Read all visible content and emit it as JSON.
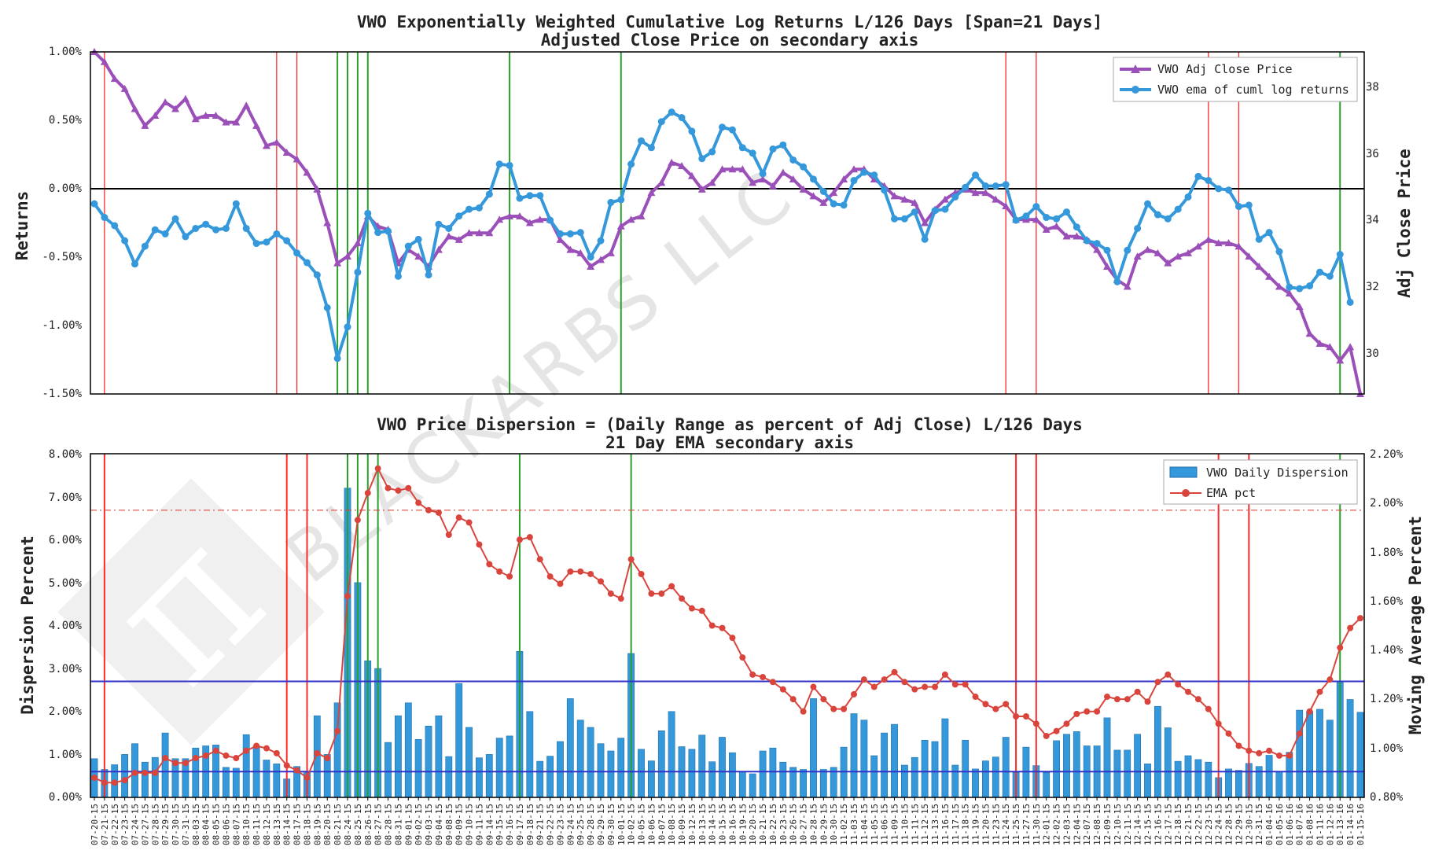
{
  "dates": [
    "07-20-15",
    "07-21-15",
    "07-22-15",
    "07-23-15",
    "07-24-15",
    "07-27-15",
    "07-28-15",
    "07-29-15",
    "07-30-15",
    "07-31-15",
    "08-03-15",
    "08-04-15",
    "08-05-15",
    "08-06-15",
    "08-07-15",
    "08-10-15",
    "08-11-15",
    "08-12-15",
    "08-13-15",
    "08-14-15",
    "08-17-15",
    "08-18-15",
    "08-19-15",
    "08-20-15",
    "08-21-15",
    "08-24-15",
    "08-25-15",
    "08-26-15",
    "08-27-15",
    "08-28-15",
    "08-31-15",
    "09-01-15",
    "09-02-15",
    "09-03-15",
    "09-04-15",
    "09-08-15",
    "09-09-15",
    "09-10-15",
    "09-11-15",
    "09-14-15",
    "09-15-15",
    "09-16-15",
    "09-17-15",
    "09-18-15",
    "09-21-15",
    "09-22-15",
    "09-23-15",
    "09-24-15",
    "09-25-15",
    "09-28-15",
    "09-29-15",
    "09-30-15",
    "10-01-15",
    "10-02-15",
    "10-05-15",
    "10-06-15",
    "10-07-15",
    "10-08-15",
    "10-09-15",
    "10-12-15",
    "10-13-15",
    "10-14-15",
    "10-15-15",
    "10-16-15",
    "10-19-15",
    "10-20-15",
    "10-21-15",
    "10-22-15",
    "10-23-15",
    "10-26-15",
    "10-27-15",
    "10-28-15",
    "10-29-15",
    "10-30-15",
    "11-02-15",
    "11-03-15",
    "11-04-15",
    "11-05-15",
    "11-06-15",
    "11-09-15",
    "11-10-15",
    "11-11-15",
    "11-12-15",
    "11-13-15",
    "11-16-15",
    "11-17-15",
    "11-18-15",
    "11-19-15",
    "11-20-15",
    "11-23-15",
    "11-24-15",
    "11-25-15",
    "11-27-15",
    "11-30-15",
    "12-01-15",
    "12-02-15",
    "12-03-15",
    "12-04-15",
    "12-07-15",
    "12-08-15",
    "12-09-15",
    "12-10-15",
    "12-11-15",
    "12-14-15",
    "12-15-15",
    "12-16-15",
    "12-17-15",
    "12-18-15",
    "12-21-15",
    "12-22-15",
    "12-23-15",
    "12-24-15",
    "12-28-15",
    "12-29-15",
    "12-30-15",
    "12-31-15",
    "01-04-16",
    "01-05-16",
    "01-06-16",
    "01-07-16",
    "01-08-16",
    "01-11-16",
    "01-12-16",
    "01-13-16",
    "01-14-16",
    "01-15-16"
  ],
  "chart_data": [
    {
      "type": "line",
      "title": "VWO Exponentially Weighted Cumulative Log Returns L/126 Days [Span=21 Days]",
      "subtitle": "Adjusted Close Price on secondary axis",
      "ylabel": "Returns",
      "ylabel_right": "Adj Close Price",
      "ylim": [
        -1.5,
        1.0
      ],
      "ylim_right": [
        28.8,
        39.0
      ],
      "yticks": [
        "1.00%",
        "0.50%",
        "0.00%",
        "-0.50%",
        "-1.00%",
        "-1.50%"
      ],
      "yticks_right": [
        "38",
        "36",
        "34",
        "32",
        "30"
      ],
      "legend": [
        "VWO Adj Close Price",
        "VWO ema of cuml log returns"
      ],
      "legend_position": "upper right",
      "series": [
        {
          "name": "VWO Adj Close Price",
          "axis": "right",
          "color": "#9b50b9",
          "marker": "triangle",
          "values": [
            39.2,
            38.7,
            38.2,
            37.9,
            37.3,
            36.8,
            37.1,
            37.5,
            37.3,
            37.6,
            37.0,
            37.1,
            37.1,
            36.9,
            36.9,
            37.4,
            36.8,
            36.2,
            36.3,
            36.0,
            35.8,
            35.4,
            34.9,
            33.9,
            32.7,
            32.9,
            33.3,
            34.1,
            33.8,
            33.7,
            32.7,
            33.1,
            32.9,
            32.6,
            33.1,
            33.5,
            33.4,
            33.6,
            33.6,
            33.6,
            34.0,
            34.1,
            34.1,
            33.9,
            34.0,
            34.0,
            33.4,
            33.1,
            33.0,
            32.6,
            32.8,
            33.0,
            33.8,
            34.0,
            34.1,
            34.8,
            35.1,
            35.7,
            35.6,
            35.3,
            34.9,
            35.1,
            35.5,
            35.5,
            35.5,
            35.1,
            35.2,
            35.0,
            35.4,
            35.2,
            34.9,
            34.7,
            34.5,
            34.8,
            35.2,
            35.5,
            35.5,
            35.2,
            35.0,
            34.7,
            34.6,
            34.5,
            33.9,
            34.3,
            34.6,
            34.8,
            34.9,
            34.8,
            34.8,
            34.6,
            34.4,
            34.0,
            34.0,
            34.0,
            33.7,
            33.8,
            33.5,
            33.5,
            33.4,
            33.1,
            32.6,
            32.2,
            32.0,
            32.9,
            33.1,
            33.0,
            32.7,
            32.9,
            33.0,
            33.2,
            33.4,
            33.3,
            33.3,
            33.2,
            32.9,
            32.6,
            32.3,
            32.0,
            31.8,
            31.4,
            30.6,
            30.3,
            30.2,
            29.8,
            30.2,
            28.8
          ]
        },
        {
          "name": "VWO ema of cuml log returns",
          "axis": "left",
          "color": "#3498db",
          "marker": "circle",
          "values": [
            -0.11,
            -0.21,
            -0.27,
            -0.38,
            -0.55,
            -0.42,
            -0.3,
            -0.33,
            -0.22,
            -0.35,
            -0.29,
            -0.26,
            -0.3,
            -0.29,
            -0.11,
            -0.29,
            -0.4,
            -0.39,
            -0.33,
            -0.38,
            -0.47,
            -0.54,
            -0.63,
            -0.87,
            -1.24,
            -1.01,
            -0.61,
            -0.18,
            -0.32,
            -0.31,
            -0.64,
            -0.42,
            -0.37,
            -0.63,
            -0.26,
            -0.29,
            -0.2,
            -0.15,
            -0.14,
            -0.04,
            0.18,
            0.17,
            -0.07,
            -0.05,
            -0.05,
            -0.23,
            -0.33,
            -0.33,
            -0.32,
            -0.5,
            -0.38,
            -0.1,
            -0.08,
            0.18,
            0.35,
            0.3,
            0.49,
            0.56,
            0.52,
            0.42,
            0.22,
            0.27,
            0.45,
            0.43,
            0.3,
            0.26,
            0.11,
            0.29,
            0.32,
            0.21,
            0.16,
            0.07,
            -0.02,
            -0.11,
            -0.12,
            0.06,
            0.12,
            0.1,
            -0.01,
            -0.22,
            -0.22,
            -0.17,
            -0.37,
            -0.16,
            -0.15,
            -0.06,
            0.01,
            0.1,
            0.02,
            0.02,
            0.03,
            -0.23,
            -0.2,
            -0.13,
            -0.21,
            -0.22,
            -0.17,
            -0.28,
            -0.38,
            -0.4,
            -0.45,
            -0.68,
            -0.45,
            -0.29,
            -0.11,
            -0.19,
            -0.22,
            -0.15,
            -0.06,
            0.09,
            0.06,
            0.0,
            -0.01,
            -0.13,
            -0.12,
            -0.37,
            -0.32,
            -0.46,
            -0.72,
            -0.73,
            -0.71,
            -0.61,
            -0.64,
            -0.48,
            -0.83
          ]
        }
      ],
      "hlines": [
        {
          "y": 0.0,
          "color": "#000000"
        }
      ],
      "vlines": [
        {
          "date": "07-21-15",
          "color": "red"
        },
        {
          "date": "08-13-15",
          "color": "red"
        },
        {
          "date": "08-17-15",
          "color": "red"
        },
        {
          "date": "08-21-15",
          "color": "green"
        },
        {
          "date": "08-24-15",
          "color": "green"
        },
        {
          "date": "08-25-15",
          "color": "green"
        },
        {
          "date": "08-26-15",
          "color": "green"
        },
        {
          "date": "09-16-15",
          "color": "green"
        },
        {
          "date": "10-01-15",
          "color": "green"
        },
        {
          "date": "11-24-15",
          "color": "red"
        },
        {
          "date": "11-30-15",
          "color": "red"
        },
        {
          "date": "12-23-15",
          "color": "red"
        },
        {
          "date": "12-29-15",
          "color": "red"
        },
        {
          "date": "01-13-16",
          "color": "green"
        }
      ]
    },
    {
      "type": "bar",
      "title": "VWO Price Dispersion = (Daily Range as percent of Adj Close) L/126 Days",
      "subtitle": "21 Day EMA secondary axis",
      "ylabel": "Dispersion Percent",
      "ylabel_right": "Moving Average Percent",
      "ylim": [
        0.0,
        8.0
      ],
      "ylim_right": [
        0.8,
        2.2
      ],
      "yticks": [
        "8.00%",
        "7.00%",
        "6.00%",
        "5.00%",
        "4.00%",
        "3.00%",
        "2.00%",
        "1.00%",
        "0.00%"
      ],
      "yticks_right": [
        "2.20%",
        "2.00%",
        "1.80%",
        "1.60%",
        "1.40%",
        "1.20%",
        "1.00%",
        "0.80%"
      ],
      "legend": [
        "VWO Daily Dispersion",
        "EMA pct"
      ],
      "legend_position": "upper right",
      "series": [
        {
          "name": "VWO Daily Dispersion",
          "axis": "left",
          "color": "#3498db",
          "values": [
            0.9,
            0.65,
            0.76,
            1.0,
            1.25,
            0.82,
            0.93,
            1.5,
            0.9,
            0.9,
            1.15,
            1.2,
            1.22,
            0.7,
            0.68,
            1.46,
            1.2,
            0.87,
            0.78,
            0.43,
            0.72,
            0.6,
            1.9,
            1.0,
            2.2,
            7.2,
            5.0,
            3.18,
            3.0,
            1.28,
            1.9,
            2.2,
            1.35,
            1.66,
            1.9,
            0.95,
            2.65,
            1.63,
            0.92,
            1.0,
            1.38,
            1.43,
            3.4,
            2.0,
            0.84,
            0.96,
            1.3,
            2.3,
            1.8,
            1.63,
            1.25,
            1.08,
            1.38,
            3.35,
            1.12,
            0.85,
            1.55,
            2.0,
            1.18,
            1.12,
            1.45,
            0.83,
            1.4,
            1.04,
            0.6,
            0.55,
            1.08,
            1.15,
            0.82,
            0.7,
            0.65,
            2.3,
            0.65,
            0.7,
            1.17,
            1.95,
            1.8,
            0.97,
            1.5,
            1.7,
            0.75,
            0.93,
            1.33,
            1.3,
            1.83,
            0.75,
            1.33,
            0.66,
            0.85,
            0.94,
            1.4,
            0.58,
            1.17,
            0.74,
            0.58,
            1.32,
            1.47,
            1.53,
            1.2,
            1.2,
            1.85,
            1.1,
            1.1,
            1.47,
            0.78,
            2.12,
            1.62,
            0.84,
            0.97,
            0.88,
            0.82,
            0.46,
            0.66,
            0.63,
            0.79,
            0.72,
            0.98,
            0.6,
            1.05,
            2.03,
            2.0,
            2.05,
            1.8,
            2.7,
            2.28,
            1.98
          ]
        },
        {
          "name": "EMA pct",
          "axis": "right",
          "color": "#d9453d",
          "marker": "circle",
          "values": [
            0.88,
            0.86,
            0.86,
            0.87,
            0.9,
            0.9,
            0.9,
            0.96,
            0.94,
            0.94,
            0.96,
            0.97,
            0.99,
            0.97,
            0.96,
            0.99,
            1.01,
            1.0,
            0.98,
            0.93,
            0.91,
            0.88,
            0.98,
            0.96,
            1.07,
            1.62,
            1.93,
            2.04,
            2.14,
            2.06,
            2.05,
            2.06,
            2.0,
            1.97,
            1.96,
            1.87,
            1.94,
            1.92,
            1.83,
            1.75,
            1.72,
            1.7,
            1.85,
            1.86,
            1.77,
            1.7,
            1.67,
            1.72,
            1.72,
            1.71,
            1.68,
            1.63,
            1.61,
            1.77,
            1.71,
            1.63,
            1.63,
            1.66,
            1.61,
            1.57,
            1.56,
            1.5,
            1.49,
            1.45,
            1.37,
            1.3,
            1.29,
            1.27,
            1.24,
            1.2,
            1.15,
            1.25,
            1.2,
            1.16,
            1.16,
            1.22,
            1.28,
            1.25,
            1.28,
            1.31,
            1.27,
            1.24,
            1.25,
            1.25,
            1.3,
            1.26,
            1.26,
            1.21,
            1.18,
            1.16,
            1.18,
            1.13,
            1.13,
            1.1,
            1.05,
            1.07,
            1.1,
            1.14,
            1.15,
            1.15,
            1.21,
            1.2,
            1.2,
            1.23,
            1.19,
            1.27,
            1.3,
            1.26,
            1.23,
            1.2,
            1.16,
            1.1,
            1.06,
            1.01,
            0.99,
            0.98,
            0.99,
            0.97,
            0.97,
            1.06,
            1.15,
            1.23,
            1.28,
            1.41,
            1.49,
            1.53
          ]
        }
      ],
      "hlines": [
        {
          "axis": "left",
          "y": 2.7,
          "color": "#3333cc"
        },
        {
          "axis": "left",
          "y": 0.6,
          "color": "#3333cc"
        },
        {
          "axis": "right",
          "y": 1.97,
          "color": "#d9453d",
          "style": "dashdot"
        }
      ],
      "vlines": [
        {
          "date": "07-21-15",
          "color": "red"
        },
        {
          "date": "08-14-15",
          "color": "red"
        },
        {
          "date": "08-18-15",
          "color": "red"
        },
        {
          "date": "08-24-15",
          "color": "green"
        },
        {
          "date": "08-25-15",
          "color": "green"
        },
        {
          "date": "08-26-15",
          "color": "green"
        },
        {
          "date": "08-27-15",
          "color": "green"
        },
        {
          "date": "09-17-15",
          "color": "green"
        },
        {
          "date": "10-02-15",
          "color": "green"
        },
        {
          "date": "11-25-15",
          "color": "red"
        },
        {
          "date": "11-30-15",
          "color": "red"
        },
        {
          "date": "12-24-15",
          "color": "red"
        },
        {
          "date": "12-30-15",
          "color": "red"
        },
        {
          "date": "01-13-16",
          "color": "green"
        }
      ]
    }
  ],
  "watermark": "BLACKARBS LLC"
}
